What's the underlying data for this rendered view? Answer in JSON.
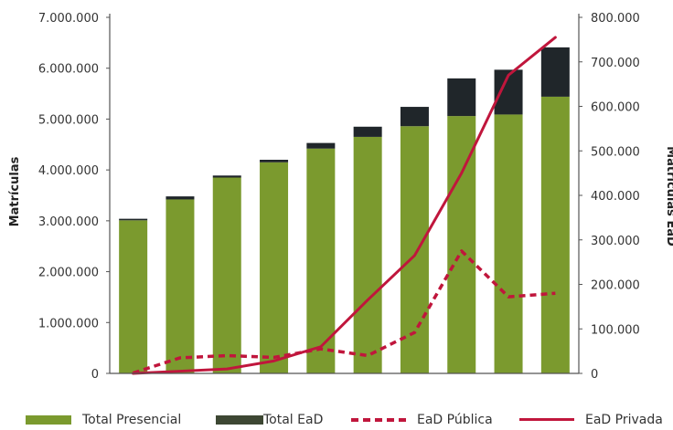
{
  "chart_data": {
    "type": "bar",
    "categories": [
      "",
      "",
      "",
      "",
      "",
      "",
      "",
      "",
      "",
      ""
    ],
    "ylabel": "Matrículas",
    "y2label": "Matrículas EaD",
    "ylim": [
      0,
      7000000
    ],
    "y2lim": [
      0,
      800000
    ],
    "yticks": [
      "0",
      "1.000.000",
      "2.000.000",
      "3.000.000",
      "4.000.000",
      "5.000.000",
      "6.000.000",
      "7.000.000"
    ],
    "y2ticks": [
      "0",
      "100.000",
      "200.000",
      "300.000",
      "400.000",
      "500.000",
      "600.000",
      "700.000",
      "800.000"
    ],
    "grid": false,
    "legend_position": "bottom",
    "series": [
      {
        "name": "Total Presencial",
        "type": "bar",
        "stack": "total",
        "axis": "left",
        "color": "#7b9a2e",
        "values": [
          3010000,
          3420000,
          3850000,
          4150000,
          4420000,
          4650000,
          4860000,
          5060000,
          5090000,
          5440000
        ]
      },
      {
        "name": "Total EaD",
        "type": "bar",
        "stack": "total",
        "axis": "left",
        "color": "#20262a",
        "values": [
          30000,
          60000,
          40000,
          50000,
          110000,
          200000,
          380000,
          740000,
          880000,
          970000
        ]
      },
      {
        "name": "EaD Pública",
        "type": "line",
        "dash": true,
        "axis": "right",
        "color": "#c0163c",
        "values": [
          1000,
          35000,
          40000,
          36000,
          55000,
          40000,
          92000,
          275000,
          172000,
          180000
        ]
      },
      {
        "name": "EaD Privada",
        "type": "line",
        "dash": false,
        "axis": "right",
        "color": "#c0163c",
        "values": [
          0,
          5000,
          10000,
          28000,
          60000,
          165000,
          265000,
          450000,
          670000,
          755000
        ]
      }
    ]
  }
}
